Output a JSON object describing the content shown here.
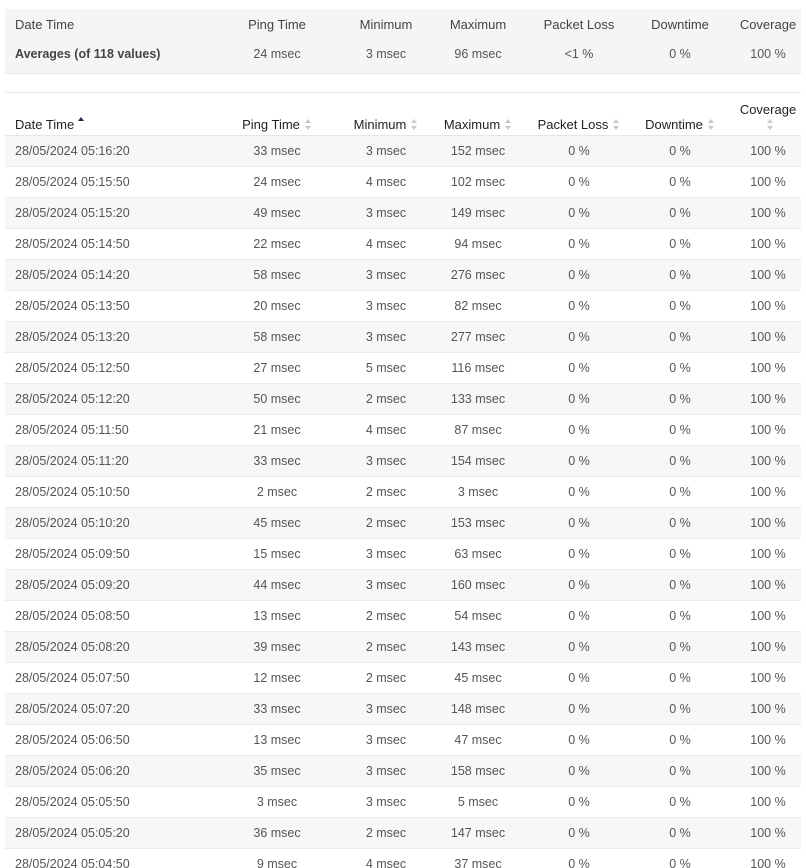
{
  "summary": {
    "headers": [
      "Date Time",
      "Ping Time",
      "Minimum",
      "Maximum",
      "Packet Loss",
      "Downtime",
      "Coverage"
    ],
    "averages": {
      "label": "Averages (of 118 values)",
      "ping": "24 msec",
      "min": "3 msec",
      "max": "96 msec",
      "loss": "<1 %",
      "downtime": "0 %",
      "coverage": "100 %"
    }
  },
  "table": {
    "headers": [
      "Date Time",
      "Ping Time",
      "Minimum",
      "Maximum",
      "Packet Loss",
      "Downtime",
      "Coverage"
    ],
    "sort": {
      "column": "Date Time",
      "direction": "ascending"
    },
    "rows": [
      [
        "28/05/2024 05:16:20",
        "33 msec",
        "3 msec",
        "152 msec",
        "0 %",
        "0 %",
        "100 %"
      ],
      [
        "28/05/2024 05:15:50",
        "24 msec",
        "4 msec",
        "102 msec",
        "0 %",
        "0 %",
        "100 %"
      ],
      [
        "28/05/2024 05:15:20",
        "49 msec",
        "3 msec",
        "149 msec",
        "0 %",
        "0 %",
        "100 %"
      ],
      [
        "28/05/2024 05:14:50",
        "22 msec",
        "4 msec",
        "94 msec",
        "0 %",
        "0 %",
        "100 %"
      ],
      [
        "28/05/2024 05:14:20",
        "58 msec",
        "3 msec",
        "276 msec",
        "0 %",
        "0 %",
        "100 %"
      ],
      [
        "28/05/2024 05:13:50",
        "20 msec",
        "3 msec",
        "82 msec",
        "0 %",
        "0 %",
        "100 %"
      ],
      [
        "28/05/2024 05:13:20",
        "58 msec",
        "3 msec",
        "277 msec",
        "0 %",
        "0 %",
        "100 %"
      ],
      [
        "28/05/2024 05:12:50",
        "27 msec",
        "5 msec",
        "116 msec",
        "0 %",
        "0 %",
        "100 %"
      ],
      [
        "28/05/2024 05:12:20",
        "50 msec",
        "2 msec",
        "133 msec",
        "0 %",
        "0 %",
        "100 %"
      ],
      [
        "28/05/2024 05:11:50",
        "21 msec",
        "4 msec",
        "87 msec",
        "0 %",
        "0 %",
        "100 %"
      ],
      [
        "28/05/2024 05:11:20",
        "33 msec",
        "3 msec",
        "154 msec",
        "0 %",
        "0 %",
        "100 %"
      ],
      [
        "28/05/2024 05:10:50",
        "2 msec",
        "2 msec",
        "3 msec",
        "0 %",
        "0 %",
        "100 %"
      ],
      [
        "28/05/2024 05:10:20",
        "45 msec",
        "2 msec",
        "153 msec",
        "0 %",
        "0 %",
        "100 %"
      ],
      [
        "28/05/2024 05:09:50",
        "15 msec",
        "3 msec",
        "63 msec",
        "0 %",
        "0 %",
        "100 %"
      ],
      [
        "28/05/2024 05:09:20",
        "44 msec",
        "3 msec",
        "160 msec",
        "0 %",
        "0 %",
        "100 %"
      ],
      [
        "28/05/2024 05:08:50",
        "13 msec",
        "2 msec",
        "54 msec",
        "0 %",
        "0 %",
        "100 %"
      ],
      [
        "28/05/2024 05:08:20",
        "39 msec",
        "2 msec",
        "143 msec",
        "0 %",
        "0 %",
        "100 %"
      ],
      [
        "28/05/2024 05:07:50",
        "12 msec",
        "2 msec",
        "45 msec",
        "0 %",
        "0 %",
        "100 %"
      ],
      [
        "28/05/2024 05:07:20",
        "33 msec",
        "3 msec",
        "148 msec",
        "0 %",
        "0 %",
        "100 %"
      ],
      [
        "28/05/2024 05:06:50",
        "13 msec",
        "3 msec",
        "47 msec",
        "0 %",
        "0 %",
        "100 %"
      ],
      [
        "28/05/2024 05:06:20",
        "35 msec",
        "3 msec",
        "158 msec",
        "0 %",
        "0 %",
        "100 %"
      ],
      [
        "28/05/2024 05:05:50",
        "3 msec",
        "3 msec",
        "5 msec",
        "0 %",
        "0 %",
        "100 %"
      ],
      [
        "28/05/2024 05:05:20",
        "36 msec",
        "2 msec",
        "147 msec",
        "0 %",
        "0 %",
        "100 %"
      ],
      [
        "28/05/2024 05:04:50",
        "9 msec",
        "4 msec",
        "37 msec",
        "0 %",
        "0 %",
        "100 %"
      ]
    ]
  }
}
